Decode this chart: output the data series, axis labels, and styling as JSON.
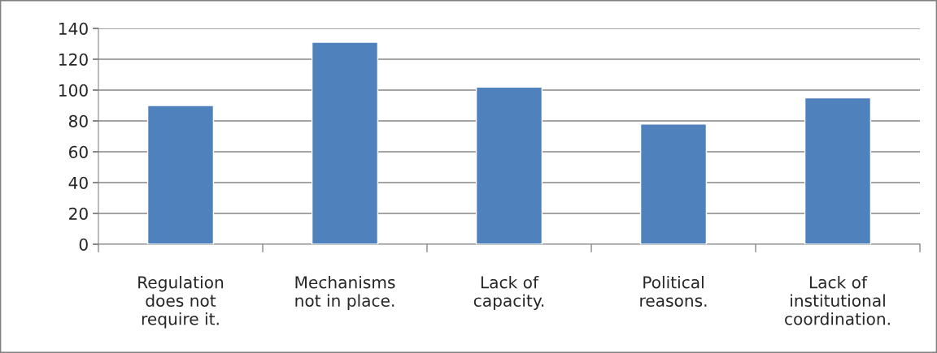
{
  "chart_data": {
    "type": "bar",
    "categories": [
      "Regulation\ndoes not\nrequire it.",
      "Mechanisms\nnot in place.",
      "Lack of\ncapacity.",
      "Political\nreasons.",
      "Lack of\ninstitutional\ncoordination."
    ],
    "values": [
      90,
      131,
      102,
      78,
      95
    ],
    "color": "#4f81bd",
    "ylim": [
      0,
      140
    ],
    "yticks": [
      0,
      20,
      40,
      60,
      80,
      100,
      120,
      140
    ],
    "grid": "y"
  }
}
